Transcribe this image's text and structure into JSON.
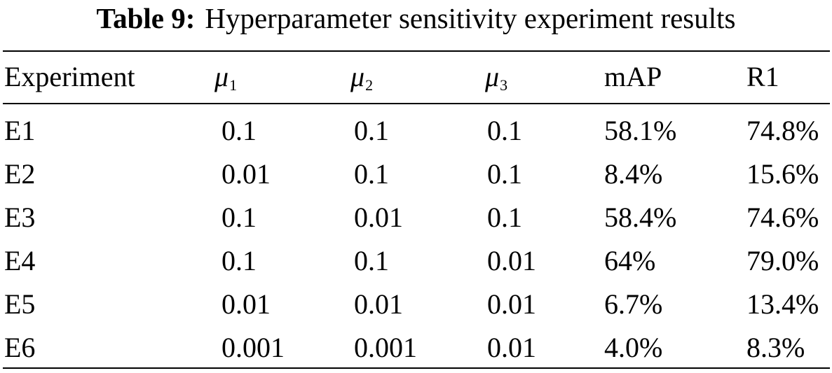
{
  "caption": {
    "label": "Table 9:",
    "text": "Hyperparameter sensitivity experiment results"
  },
  "table": {
    "headers": [
      {
        "main": "Experiment",
        "sub": ""
      },
      {
        "main": "μ",
        "sub": "1"
      },
      {
        "main": "μ",
        "sub": "2"
      },
      {
        "main": "μ",
        "sub": "3"
      },
      {
        "main": "mAP",
        "sub": ""
      },
      {
        "main": "R1",
        "sub": ""
      }
    ],
    "rows": [
      [
        "E1",
        "0.1",
        "0.1",
        "0.1",
        "58.1%",
        "74.8%"
      ],
      [
        "E2",
        "0.01",
        "0.1",
        "0.1",
        "8.4%",
        "15.6%"
      ],
      [
        "E3",
        "0.1",
        "0.01",
        "0.1",
        "58.4%",
        "74.6%"
      ],
      [
        "E4",
        "0.1",
        "0.1",
        "0.01",
        "64%",
        "79.0%"
      ],
      [
        "E5",
        "0.01",
        "0.01",
        "0.01",
        "6.7%",
        "13.4%"
      ],
      [
        "E6",
        "0.001",
        "0.001",
        "0.01",
        "4.0%",
        "8.3%"
      ]
    ]
  }
}
